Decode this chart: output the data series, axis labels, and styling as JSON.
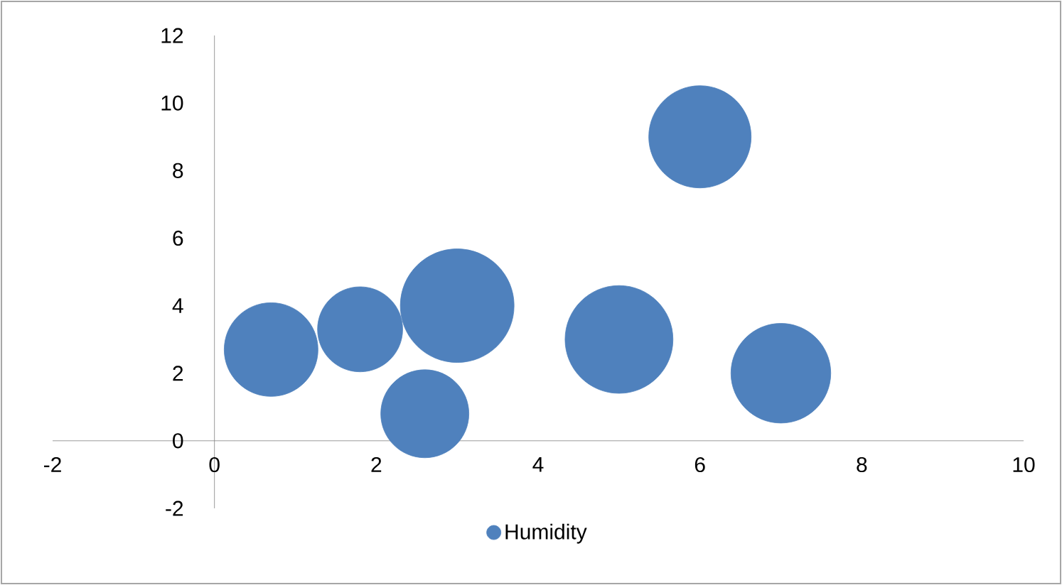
{
  "chart_data": {
    "type": "bubble",
    "legend": "bottom",
    "series": [
      {
        "name": "Humidity",
        "color": "#4f81bd",
        "x": [
          0.7,
          1.8,
          2.6,
          3.0,
          5.0,
          6.0,
          7.0
        ],
        "values": [
          2.7,
          3.3,
          0.8,
          4.0,
          3.0,
          9.0,
          2.0
        ],
        "sizes": [
          0.68,
          0.56,
          0.6,
          1,
          0.9,
          0.81,
          0.77
        ]
      }
    ],
    "xlim": [
      -2,
      10
    ],
    "xticks": [
      -2,
      0,
      2,
      4,
      6,
      8,
      10
    ],
    "ylim": [
      -2,
      12
    ],
    "yticks": [
      -2,
      0,
      2,
      4,
      6,
      8,
      10,
      12
    ]
  }
}
